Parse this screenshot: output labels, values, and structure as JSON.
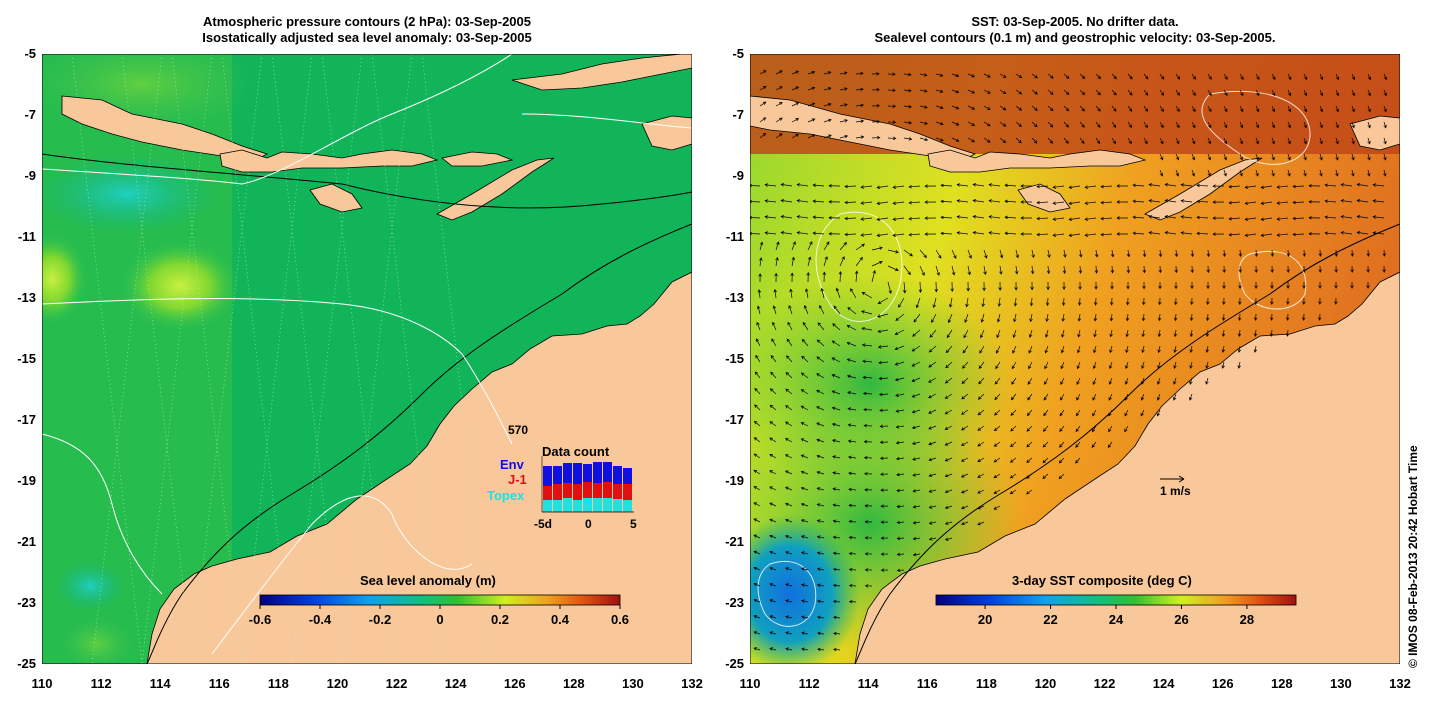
{
  "left_panel": {
    "title_line1": "Atmospheric pressure contours (2 hPa): 03-Sep-2005",
    "title_line2": "Isostatically adjusted sea level anomaly: 03-Sep-2005",
    "colorbar_title": "Sea level anomaly (m)",
    "colorbar_ticks": [
      "-0.6",
      "-0.4",
      "-0.2",
      "0",
      "0.2",
      "0.4",
      "0.6"
    ],
    "data_count": {
      "title": "Data count",
      "max_label": "570",
      "series": [
        {
          "name": "Env",
          "color": "#1010e0"
        },
        {
          "name": "J-1",
          "color": "#e01010"
        },
        {
          "name": "Topex",
          "color": "#20e0e0"
        }
      ],
      "x_ticks": [
        "-5d",
        "0",
        "5"
      ]
    }
  },
  "right_panel": {
    "title_line1": "SST: 03-Sep-2005. No drifter data.",
    "title_line2": "Sealevel contours (0.1 m) and geostrophic velocity: 03-Sep-2005.",
    "colorbar_title": "3-day SST composite (deg C)",
    "colorbar_ticks": [
      "20",
      "22",
      "24",
      "26",
      "28"
    ],
    "velocity_scale_label": "1 m/s"
  },
  "y_ticks": [
    "-5",
    "-7",
    "-9",
    "-11",
    "-13",
    "-15",
    "-17",
    "-19",
    "-21",
    "-23",
    "-25"
  ],
  "x_ticks": [
    "110",
    "112",
    "114",
    "116",
    "118",
    "120",
    "122",
    "124",
    "126",
    "128",
    "130",
    "132"
  ],
  "credit": "© IMOS 08-Feb-2013 20:42 Hobart Time",
  "colors": {
    "land": "#f8c89a",
    "sla_green": "#10b060",
    "sst_orange": "#e08020",
    "sst_red": "#b03010"
  }
}
